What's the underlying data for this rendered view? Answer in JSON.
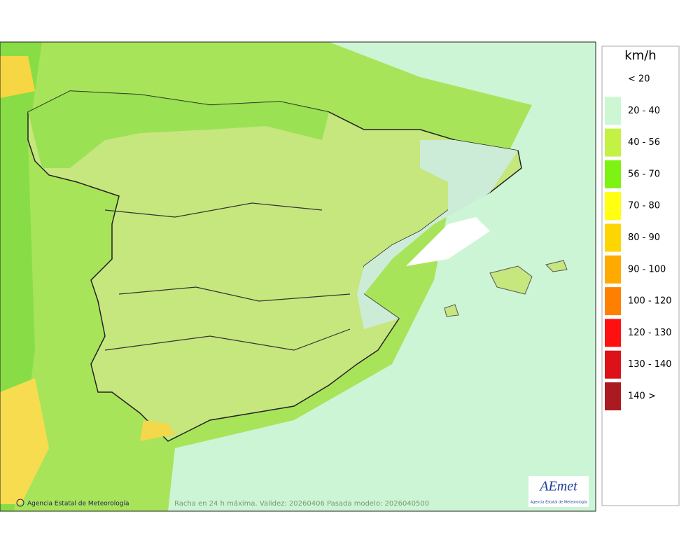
{
  "legend": {
    "title": "km/h",
    "items": [
      {
        "label": "< 20",
        "color": null
      },
      {
        "label": "20 - 40",
        "color": "#ccf7d2"
      },
      {
        "label": "40 - 56",
        "color": "#c4f244"
      },
      {
        "label": "56 - 70",
        "color": "#7ef312"
      },
      {
        "label": "70 - 80",
        "color": "#ffff10"
      },
      {
        "label": "80 - 90",
        "color": "#ffd500"
      },
      {
        "label": "90 - 100",
        "color": "#ffaa00"
      },
      {
        "label": "100 - 120",
        "color": "#ff8000"
      },
      {
        "label": "120 - 130",
        "color": "#ff1010"
      },
      {
        "label": "130 - 140",
        "color": "#dd1118"
      },
      {
        "label": "140 >",
        "color": "#aa1a20"
      }
    ]
  },
  "footer": {
    "credit": "Agencia Estatal de Meteorología",
    "caption": "Racha en 24 h máxima. Validez: 20260406 Pasada modelo: 2026040500"
  },
  "logo": {
    "name": "AEmet",
    "subtitle": "Agencia Estatal de Meteorología"
  }
}
